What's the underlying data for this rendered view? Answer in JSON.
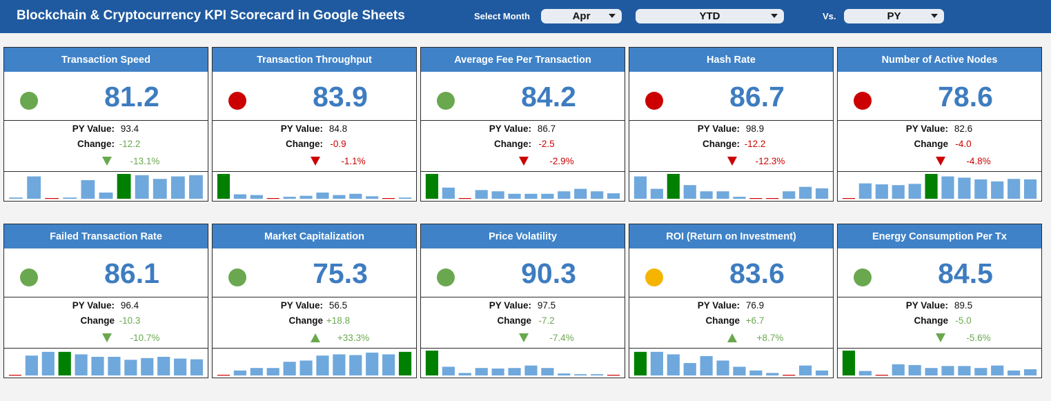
{
  "header": {
    "title": "Blockchain & Cryptocurrency KPI Scorecard in Google Sheets",
    "select_month_label": "Select Month",
    "month": "Apr",
    "period": "YTD",
    "vs_label": "Vs.",
    "comparison": "PY"
  },
  "colors": {
    "header_bg": "#1f5aa0",
    "card_header_bg": "#3f82c8",
    "bar_normal": "#6fa8dc",
    "bar_highlight": "#008000",
    "bar_zero": "#cc0000",
    "good": "#6aa84f",
    "bad": "#cc0000",
    "warn": "#f4b400"
  },
  "labels": {
    "py_value": "PY Value:"
  },
  "cards": [
    {
      "name": "Transaction Speed",
      "value": "81.2",
      "status": "green",
      "py_value": "93.4",
      "change_label": "Change:",
      "change": "-12.2",
      "pct": "-13.1%",
      "direction": "down",
      "trend": "positive",
      "bars": [
        0.05,
        0.9,
        0,
        0.05,
        0.75,
        0.25,
        1.0,
        0.95,
        0.8,
        0.9,
        0.95
      ],
      "highlight": 6
    },
    {
      "name": "Transaction Throughput",
      "value": "83.9",
      "status": "red",
      "py_value": "84.8",
      "change_label": "Change:",
      "change": "-0.9",
      "pct": "-1.1%",
      "direction": "down",
      "trend": "negative",
      "bars": [
        1.0,
        0.18,
        0.15,
        0,
        0.08,
        0.12,
        0.25,
        0.15,
        0.2,
        0.1,
        0,
        0.05
      ],
      "highlight": 0
    },
    {
      "name": "Average Fee Per Transaction",
      "value": "84.2",
      "status": "green",
      "py_value": "86.7",
      "change_label": "Change:",
      "change": "-2.5",
      "pct": "-2.9%",
      "direction": "down",
      "trend": "negative",
      "bars": [
        1.0,
        0.45,
        0,
        0.35,
        0.3,
        0.2,
        0.2,
        0.2,
        0.3,
        0.4,
        0.3,
        0.22
      ],
      "highlight": 0
    },
    {
      "name": "Hash Rate",
      "value": "86.7",
      "status": "red",
      "py_value": "98.9",
      "change_label": "Change:",
      "change": "-12.2",
      "pct": "-12.3%",
      "direction": "down",
      "trend": "negative",
      "bars": [
        0.9,
        0.4,
        1.0,
        0.55,
        0.3,
        0.3,
        0.08,
        0,
        0,
        0.3,
        0.48,
        0.42
      ],
      "highlight": 2
    },
    {
      "name": "Number of Active Nodes",
      "value": "78.6",
      "status": "red",
      "py_value": "82.6",
      "change_label": "Change",
      "change": "-4.0",
      "pct": "-4.8%",
      "direction": "down",
      "trend": "negative",
      "bars": [
        0,
        0.62,
        0.58,
        0.55,
        0.6,
        1.0,
        0.9,
        0.85,
        0.78,
        0.7,
        0.8,
        0.78
      ],
      "highlight": 5
    },
    {
      "name": "Failed Transaction Rate",
      "value": "86.1",
      "status": "green",
      "py_value": "96.4",
      "change_label": "Change",
      "change": "-10.3",
      "pct": "-10.7%",
      "direction": "down",
      "trend": "positive",
      "bars": [
        0,
        0.8,
        0.95,
        0.95,
        0.85,
        0.75,
        0.75,
        0.63,
        0.7,
        0.75,
        0.68,
        0.65
      ],
      "highlight": 3
    },
    {
      "name": "Market Capitalization",
      "value": "75.3",
      "status": "green",
      "py_value": "56.5",
      "change_label": "Change",
      "change": "+18.8",
      "pct": "+33.3%",
      "direction": "up",
      "trend": "positive",
      "bars": [
        0,
        0.2,
        0.3,
        0.3,
        0.55,
        0.6,
        0.8,
        0.85,
        0.82,
        0.92,
        0.85,
        0.95
      ],
      "highlight": 11
    },
    {
      "name": "Price Volatility",
      "value": "90.3",
      "status": "green",
      "py_value": "97.5",
      "change_label": "Change",
      "change": "-7.2",
      "pct": "-7.4%",
      "direction": "down",
      "trend": "positive",
      "bars": [
        1.0,
        0.35,
        0.1,
        0.3,
        0.28,
        0.3,
        0.4,
        0.3,
        0.08,
        0.05,
        0.05,
        0
      ],
      "highlight": 0
    },
    {
      "name": "ROI (Return on Investment)",
      "value": "83.6",
      "status": "yellow",
      "py_value": "76.9",
      "change_label": "Change",
      "change": "+6.7",
      "pct": "+8.7%",
      "direction": "up",
      "trend": "positive",
      "bars": [
        0.95,
        0.95,
        0.85,
        0.5,
        0.78,
        0.6,
        0.35,
        0.2,
        0.1,
        0,
        0.4,
        0.2
      ],
      "highlight": 0
    },
    {
      "name": "Energy Consumption Per Tx",
      "value": "84.5",
      "status": "green",
      "py_value": "89.5",
      "change_label": "Change",
      "change": "-5.0",
      "pct": "-5.6%",
      "direction": "down",
      "trend": "positive",
      "bars": [
        1.0,
        0.18,
        0,
        0.45,
        0.42,
        0.3,
        0.38,
        0.38,
        0.3,
        0.4,
        0.2,
        0.25
      ],
      "highlight": 0
    }
  ]
}
